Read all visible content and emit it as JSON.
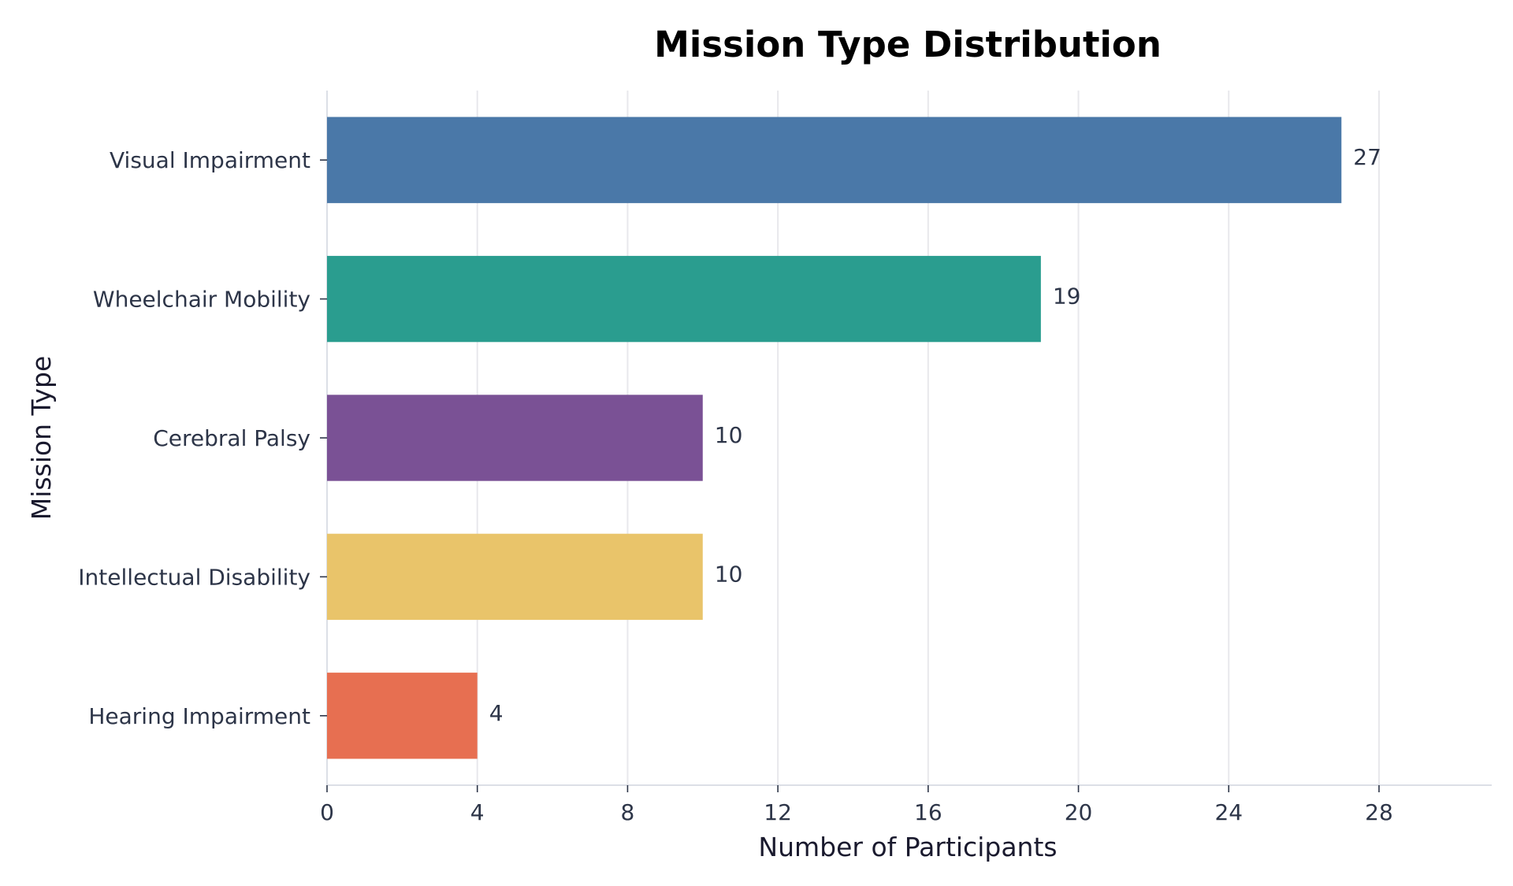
{
  "chart_data": {
    "type": "bar",
    "orientation": "horizontal",
    "title": "Mission Type Distribution",
    "xlabel": "Number of Participants",
    "ylabel": "Mission Type",
    "categories": [
      "Visual Impairment",
      "Wheelchair Mobility",
      "Cerebral Palsy",
      "Intellectual Disability",
      "Hearing Impairment"
    ],
    "values": [
      27,
      19,
      10,
      10,
      4
    ],
    "data_labels": [
      "27",
      "19",
      "10",
      "10",
      "4"
    ],
    "colors": [
      "#4a78a8",
      "#2a9d8f",
      "#7a5195",
      "#e9c46a",
      "#e76f51"
    ],
    "xlim": [
      0,
      31
    ],
    "xticks": [
      0,
      4,
      8,
      12,
      16,
      20,
      24,
      28
    ],
    "xtick_labels": [
      "0",
      "4",
      "8",
      "12",
      "16",
      "20",
      "24",
      "28"
    ],
    "grid": "vertical",
    "legend": "none"
  }
}
